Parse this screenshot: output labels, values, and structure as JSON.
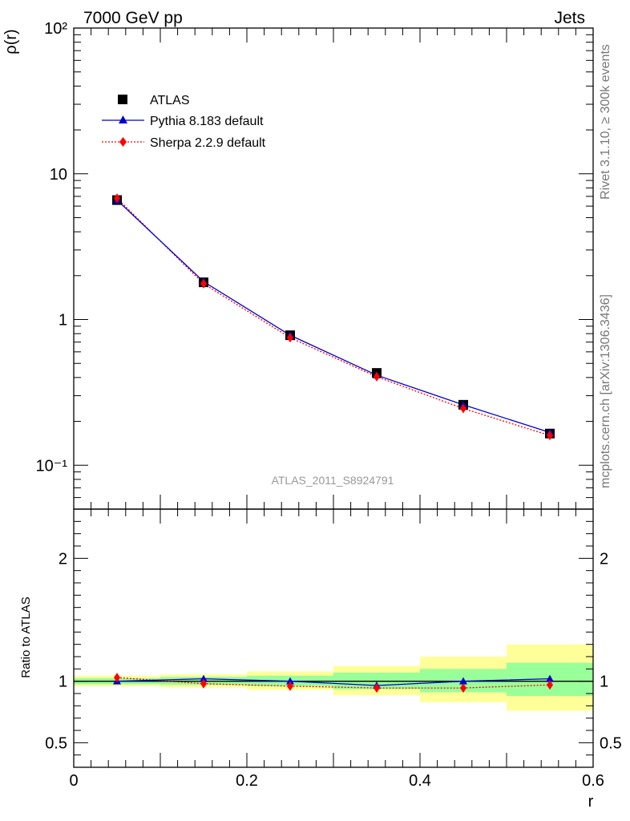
{
  "header": {
    "left": "7000 GeV pp",
    "right": "Jets"
  },
  "side": {
    "rivet": "Rivet 3.1.10, ≥ 300k events",
    "mcplots": "mcplots.cern.ch [arXiv:1306.3436]"
  },
  "watermark": "ATLAS_2011_S8924791",
  "colors": {
    "atlas": "#000000",
    "pythia": "#0000cc",
    "sherpa": "#ff0000",
    "band_green": "#99ff99",
    "band_yellow": "#ffff99"
  },
  "chart_data": [
    {
      "type": "scatter",
      "panel": "main",
      "ylabel": "ρ(r)",
      "yscale": "log",
      "xlim": [
        0,
        0.6
      ],
      "ylim": [
        0.05,
        100
      ],
      "y_tick_labels": [
        "10⁻¹",
        "1",
        "10",
        "10²"
      ],
      "x": [
        0.05,
        0.15,
        0.25,
        0.35,
        0.45,
        0.55
      ],
      "series": [
        {
          "name": "ATLAS",
          "values": [
            6.6,
            1.8,
            0.78,
            0.43,
            0.26,
            0.165
          ]
        },
        {
          "name": "Pythia 8.183 default",
          "values": [
            6.6,
            1.82,
            0.78,
            0.415,
            0.26,
            0.168
          ]
        },
        {
          "name": "Sherpa 2.2.9 default",
          "values": [
            6.8,
            1.76,
            0.75,
            0.405,
            0.245,
            0.16
          ]
        }
      ]
    },
    {
      "type": "line",
      "panel": "ratio",
      "xlabel": "r",
      "ylabel": "Ratio to ATLAS",
      "xlim": [
        0,
        0.6
      ],
      "ylim": [
        0.3,
        2.4
      ],
      "x_tick_labels": [
        "0",
        "0.2",
        "0.4",
        "0.6"
      ],
      "y_tick_labels": [
        "0.5",
        "1",
        "2"
      ],
      "x": [
        0.05,
        0.15,
        0.25,
        0.35,
        0.45,
        0.55
      ],
      "bands": {
        "edges": [
          0,
          0.1,
          0.2,
          0.3,
          0.4,
          0.5,
          0.6
        ],
        "green": [
          [
            0.975,
            1.025
          ],
          [
            0.97,
            1.035
          ],
          [
            0.96,
            1.045
          ],
          [
            0.935,
            1.07
          ],
          [
            0.91,
            1.1
          ],
          [
            0.88,
            1.15
          ]
        ],
        "yellow": [
          [
            0.96,
            1.045
          ],
          [
            0.95,
            1.055
          ],
          [
            0.93,
            1.08
          ],
          [
            0.885,
            1.125
          ],
          [
            0.83,
            1.2
          ],
          [
            0.76,
            1.3
          ]
        ]
      },
      "series": [
        {
          "name": "Pythia 8.183 default",
          "values": [
            1.0,
            1.02,
            1.0,
            0.965,
            1.0,
            1.02
          ],
          "errors": [
            0.01,
            0.01,
            0.02,
            0.02,
            0.02,
            0.02
          ]
        },
        {
          "name": "Sherpa 2.2.9 default",
          "values": [
            1.03,
            0.98,
            0.96,
            0.945,
            0.945,
            0.97
          ]
        }
      ]
    }
  ]
}
